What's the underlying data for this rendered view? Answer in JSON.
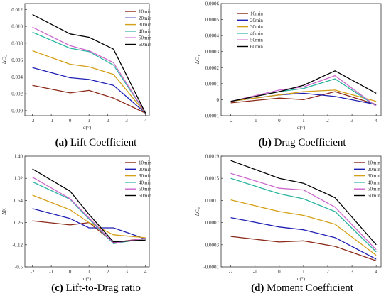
{
  "chart_data": [
    {
      "type": "line",
      "caption_letter": "(a)",
      "caption_title": "Lift Coefficient",
      "xlabel": "α(°)",
      "ylabel": "ΔC_L",
      "ylabel_main": "ΔC",
      "ylabel_sub": "L",
      "xlim": [
        -2.4,
        4.2
      ],
      "ylim": [
        -0.0006,
        0.0127
      ],
      "x_ticks": [
        -2,
        -1,
        0,
        1,
        2,
        3,
        4
      ],
      "x_tick_labels": [
        "-2",
        "-1",
        "0",
        "1",
        "2",
        "3",
        "4"
      ],
      "y_ticks": [
        0,
        0.002,
        0.004,
        0.006,
        0.008,
        0.01,
        0.012
      ],
      "y_tick_labels": [
        "0.000",
        "0.002",
        "0.004",
        "0.006",
        "0.008",
        "0.010",
        "0.012"
      ],
      "x": [
        -2,
        0,
        1,
        2.3,
        4
      ],
      "legend_position": "top-right",
      "series": [
        {
          "name": "10min",
          "color": "#8b2a1a",
          "values": [
            0.003,
            0.0021,
            0.0024,
            0.0015,
            -0.0003
          ]
        },
        {
          "name": "20min",
          "color": "#1f1fb4",
          "values": [
            0.0051,
            0.0039,
            0.0037,
            0.003,
            -0.0003
          ]
        },
        {
          "name": "30min",
          "color": "#d4a017",
          "values": [
            0.0071,
            0.0055,
            0.0052,
            0.0043,
            -0.0003
          ]
        },
        {
          "name": "40min",
          "color": "#2bb5a0",
          "values": [
            0.0093,
            0.0074,
            0.007,
            0.0054,
            -0.0003
          ]
        },
        {
          "name": "50min",
          "color": "#cc66cc",
          "values": [
            0.0099,
            0.0077,
            0.0071,
            0.0057,
            -0.0003
          ]
        },
        {
          "name": "60min",
          "color": "#000000",
          "values": [
            0.0114,
            0.0091,
            0.0087,
            0.0073,
            -0.0003
          ]
        }
      ]
    },
    {
      "type": "line",
      "caption_letter": "(b)",
      "caption_title": "Drag Coefficient",
      "xlabel": "α(°)",
      "ylabel": "ΔC_D",
      "ylabel_main": "ΔC",
      "ylabel_sub": "D",
      "xlim": [
        -2.4,
        4.2
      ],
      "ylim": [
        -0.0001,
        0.0006
      ],
      "x_ticks": [
        -2,
        -1,
        0,
        1,
        2,
        3,
        4
      ],
      "x_tick_labels": [
        "-2",
        "-1",
        "0",
        "1",
        "2",
        "3",
        "4"
      ],
      "y_ticks": [
        -0.0001,
        0,
        0.0001,
        0.0002,
        0.0003,
        0.0004,
        0.0005,
        0.0006
      ],
      "y_tick_labels": [
        "-0.0001",
        "0",
        "0.0001",
        "0.0002",
        "0.0003",
        "0.0004",
        "0.0005",
        "0.0006"
      ],
      "x": [
        -2,
        0,
        1,
        2.3,
        4
      ],
      "legend_position": "top-left",
      "series": [
        {
          "name": "10min",
          "color": "#8b2a1a",
          "values": [
            -2e-05,
            1e-05,
            0.0,
            5e-05,
            -3e-05
          ]
        },
        {
          "name": "20min",
          "color": "#1f1fb4",
          "values": [
            -1e-05,
            3e-05,
            4e-05,
            2e-05,
            -3e-05
          ]
        },
        {
          "name": "30min",
          "color": "#d4a017",
          "values": [
            -1e-05,
            3e-05,
            5e-05,
            6e-05,
            -1e-05
          ]
        },
        {
          "name": "40min",
          "color": "#2bb5a0",
          "values": [
            -1e-05,
            5e-05,
            7e-05,
            0.00013,
            -4e-05
          ]
        },
        {
          "name": "50min",
          "color": "#cc66cc",
          "values": [
            -1e-05,
            6e-05,
            8e-05,
            0.00015,
            -4e-05
          ]
        },
        {
          "name": "60min",
          "color": "#000000",
          "values": [
            -1e-05,
            5e-05,
            9e-05,
            0.00018,
            4e-05
          ]
        }
      ]
    },
    {
      "type": "line",
      "caption_letter": "(c)",
      "caption_title": "Lift-to-Drag ratio",
      "xlabel": "α(°)",
      "ylabel": "ΔK",
      "ylabel_main": "ΔK",
      "ylabel_sub": "",
      "xlim": [
        -2.4,
        4.2
      ],
      "ylim": [
        -0.5,
        1.4
      ],
      "x_ticks": [
        -2,
        -1,
        0,
        1,
        2,
        3,
        4
      ],
      "x_tick_labels": [
        "-2",
        "-1",
        "0",
        "1",
        "2",
        "3",
        "4"
      ],
      "y_ticks": [
        -0.5,
        -0.12,
        0.26,
        0.64,
        1.02,
        1.4
      ],
      "y_tick_labels": [
        "-0.5",
        "-0.12",
        "0.26",
        "0.64",
        "1.02",
        "1.40"
      ],
      "x": [
        -2,
        0,
        1,
        2.3,
        4
      ],
      "legend_position": "top-right",
      "series": [
        {
          "name": "10min",
          "color": "#8b2a1a",
          "values": [
            0.29,
            0.22,
            0.26,
            -0.08,
            -0.01
          ]
        },
        {
          "name": "20min",
          "color": "#1f1fb4",
          "values": [
            0.5,
            0.33,
            0.17,
            0.17,
            -0.02
          ]
        },
        {
          "name": "30min",
          "color": "#d4a017",
          "values": [
            0.73,
            0.48,
            0.26,
            0.05,
            0.0
          ]
        },
        {
          "name": "40min",
          "color": "#2bb5a0",
          "values": [
            0.96,
            0.66,
            0.32,
            -0.1,
            -0.01
          ]
        },
        {
          "name": "50min",
          "color": "#cc66cc",
          "values": [
            1.04,
            0.67,
            0.34,
            -0.09,
            -0.01
          ]
        },
        {
          "name": "60min",
          "color": "#000000",
          "values": [
            1.18,
            0.8,
            0.4,
            -0.07,
            -0.04
          ]
        }
      ]
    },
    {
      "type": "line",
      "caption_letter": "(d)",
      "caption_title": "Moment Coefficient",
      "xlabel": "α(°)",
      "ylabel": "ΔC_m",
      "ylabel_main": "ΔC",
      "ylabel_sub": "m",
      "xlim": [
        -2.4,
        4.2
      ],
      "ylim": [
        -0.0001,
        0.0019
      ],
      "x_ticks": [
        -2,
        -1,
        0,
        1,
        2,
        3,
        4
      ],
      "x_tick_labels": [
        "-2",
        "-1",
        "0",
        "1",
        "2",
        "3",
        "4"
      ],
      "y_ticks": [
        -0.0001,
        0.0003,
        0.0007,
        0.0011,
        0.0015,
        0.0019
      ],
      "y_tick_labels": [
        "-0.0001",
        "0.0003",
        "0.0007",
        "0.0011",
        "0.0015",
        "0.0019"
      ],
      "x": [
        -2,
        0,
        1,
        2.3,
        4
      ],
      "legend_position": "top-right",
      "series": [
        {
          "name": "10min",
          "color": "#8b2a1a",
          "values": [
            0.00045,
            0.00035,
            0.00037,
            0.00027,
            1e-05
          ]
        },
        {
          "name": "20min",
          "color": "#1f1fb4",
          "values": [
            0.00079,
            0.00062,
            0.00057,
            0.00043,
            4e-05
          ]
        },
        {
          "name": "30min",
          "color": "#d4a017",
          "values": [
            0.00111,
            0.0009,
            0.00083,
            0.00067,
            0.00011
          ]
        },
        {
          "name": "40min",
          "color": "#2bb5a0",
          "values": [
            0.0015,
            0.00122,
            0.00113,
            0.0009,
            0.00017
          ]
        },
        {
          "name": "50min",
          "color": "#cc66cc",
          "values": [
            0.00159,
            0.00132,
            0.00129,
            0.00098,
            0.00021
          ]
        },
        {
          "name": "60min",
          "color": "#000000",
          "values": [
            0.00182,
            0.0015,
            0.00141,
            0.00115,
            0.0003
          ]
        }
      ]
    }
  ]
}
